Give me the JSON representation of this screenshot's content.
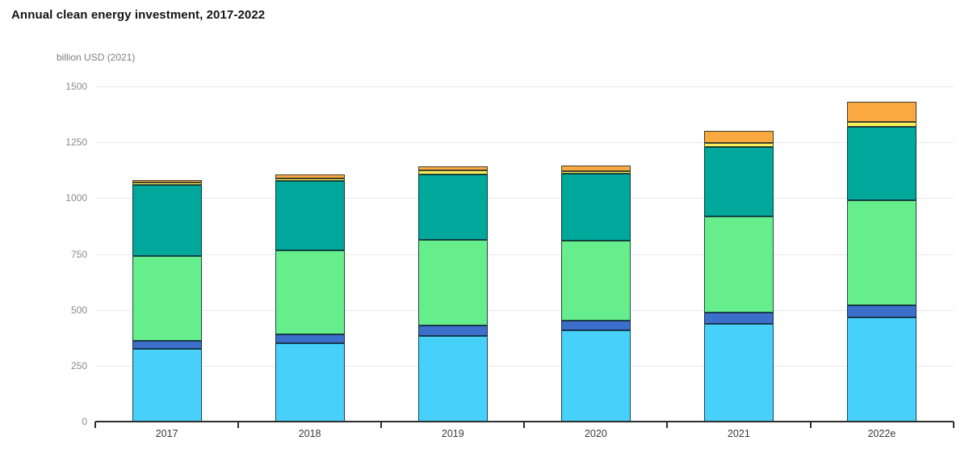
{
  "header": {
    "title": "Annual clean energy investment, 2017-2022",
    "unit_label": "billion USD (2021)"
  },
  "chart_data": {
    "type": "bar",
    "stacked": true,
    "title": "Annual clean energy investment, 2017-2022",
    "ylabel": "billion USD (2021)",
    "xlabel": "",
    "categories": [
      "2017",
      "2018",
      "2019",
      "2020",
      "2021",
      "2022e"
    ],
    "series": [
      {
        "name": "bottom-light-blue",
        "color": "#47D1FA",
        "values": [
          325,
          350,
          385,
          410,
          438,
          466
        ]
      },
      {
        "name": "dark-blue",
        "color": "#3B6FC9",
        "values": [
          37,
          40,
          44,
          42,
          52,
          55
        ]
      },
      {
        "name": "light-green",
        "color": "#66EE8D",
        "values": [
          380,
          378,
          383,
          356,
          429,
          470
        ]
      },
      {
        "name": "teal",
        "color": "#00A79B",
        "values": [
          318,
          308,
          295,
          301,
          308,
          326
        ]
      },
      {
        "name": "yellow-stripe",
        "color": "#F9F059",
        "values": [
          10,
          12,
          17,
          10,
          20,
          24
        ]
      },
      {
        "name": "top-orange",
        "color": "#F9A93F",
        "values": [
          12,
          18,
          18,
          26,
          52,
          89
        ]
      }
    ],
    "totals": [
      1082,
      1106,
      1142,
      1145,
      1299,
      1430
    ],
    "ylim": [
      0,
      1500
    ],
    "yticks": [
      0,
      250,
      500,
      750,
      1000,
      1250,
      1500
    ],
    "grid": "horizontal",
    "legend": "none",
    "colors": {
      "gridline": "#e9e9e9",
      "axis": "#2e2e2e",
      "y_tick_text": "#8a8a8a",
      "x_tick_text": "#3a3a3a",
      "title_text": "#141414",
      "bar_stroke": "rgba(12,28,40,0.78)"
    }
  }
}
